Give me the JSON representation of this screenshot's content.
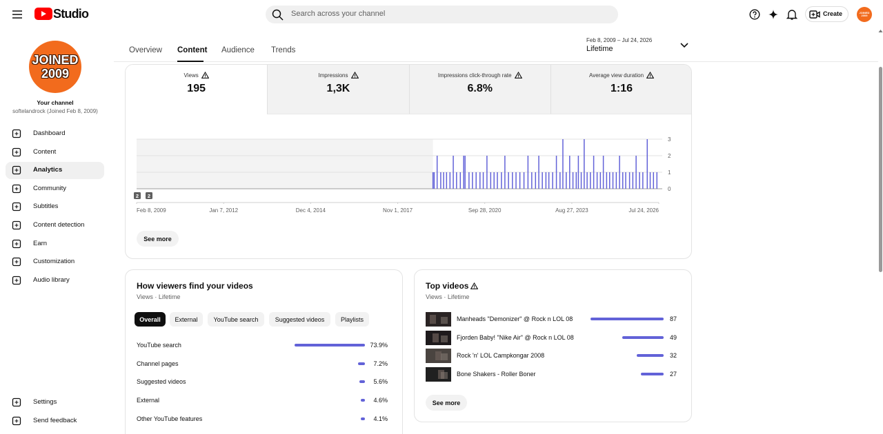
{
  "header": {
    "logo": "Studio",
    "search_placeholder": "Search across your channel",
    "create": "Create"
  },
  "sidebar": {
    "avatar": [
      "JOINED",
      "2009"
    ],
    "label": "Your channel",
    "channel": "softelandrock (Joined Feb 8, 2009)",
    "nav": [
      "Dashboard",
      "Content",
      "Analytics",
      "Community",
      "Subtitles",
      "Content detection",
      "Earn",
      "Customization",
      "Audio library"
    ],
    "active": 2,
    "footer": [
      "Settings",
      "Send feedback"
    ]
  },
  "tabs": {
    "items": [
      "Overview",
      "Content",
      "Audience",
      "Trends"
    ],
    "active": 1
  },
  "date_range": {
    "range": "Feb 8, 2009 – Jul 24, 2026",
    "period": "Lifetime"
  },
  "metrics": [
    {
      "label": "Views",
      "value": "195"
    },
    {
      "label": "Impressions",
      "value": "1,3K"
    },
    {
      "label": "Impressions click-through rate",
      "value": "6.8%"
    },
    {
      "label": "Average view duration",
      "value": "1:16"
    }
  ],
  "chart_data": {
    "type": "bar",
    "color": "#6262d8",
    "x": [
      "2019-01-05",
      "2019-01-20",
      "2019-02-25",
      "2019-04-10",
      "2019-05-15",
      "2019-06-20",
      "2019-08-01",
      "2019-09-10",
      "2019-10-20",
      "2019-12-05",
      "2020-01-15",
      "2020-02-01",
      "2020-03-20",
      "2020-05-01",
      "2020-06-15",
      "2020-08-01",
      "2020-09-10",
      "2020-10-25",
      "2020-12-10",
      "2021-01-20",
      "2021-03-01",
      "2021-04-20",
      "2021-06-01",
      "2021-07-15",
      "2021-09-01",
      "2021-10-15",
      "2021-12-01",
      "2022-01-20",
      "2022-03-10",
      "2022-04-25",
      "2022-06-10",
      "2022-07-20",
      "2022-09-01",
      "2022-10-15",
      "2022-11-20",
      "2023-01-05",
      "2023-02-20",
      "2023-04-05",
      "2023-05-10",
      "2023-06-20",
      "2023-08-01",
      "2023-09-10",
      "2023-10-20",
      "2023-11-15",
      "2023-12-20",
      "2024-01-25",
      "2024-03-01",
      "2024-04-10",
      "2024-05-20",
      "2024-07-01",
      "2024-08-10",
      "2024-09-15",
      "2024-10-25",
      "2024-12-01",
      "2025-01-10",
      "2025-02-20",
      "2025-04-01",
      "2025-05-10",
      "2025-06-15",
      "2025-08-01",
      "2025-09-10",
      "2025-10-20",
      "2025-12-01",
      "2026-01-10",
      "2026-03-05",
      "2026-04-10",
      "2026-05-20",
      "2026-07-01"
    ],
    "values": [
      1,
      1,
      2,
      1,
      1,
      1,
      1,
      2,
      1,
      1,
      2,
      2,
      1,
      1,
      1,
      1,
      1,
      2,
      1,
      1,
      1,
      1,
      2,
      1,
      1,
      1,
      1,
      1,
      2,
      1,
      1,
      2,
      1,
      1,
      1,
      1,
      2,
      1,
      3,
      1,
      2,
      1,
      1,
      2,
      1,
      3,
      1,
      1,
      2,
      1,
      1,
      2,
      1,
      1,
      1,
      1,
      2,
      1,
      1,
      1,
      1,
      2,
      1,
      1,
      3,
      1,
      1,
      1
    ],
    "xlim": [
      "2009-02-08",
      "2026-07-24"
    ],
    "xticks": [
      {
        "value": "2009-02-08",
        "label": "Feb 8, 2009"
      },
      {
        "value": "2012-01-07",
        "label": "Jan 7, 2012"
      },
      {
        "value": "2014-12-04",
        "label": "Dec 4, 2014"
      },
      {
        "value": "2017-11-01",
        "label": "Nov 1, 2017"
      },
      {
        "value": "2020-09-28",
        "label": "Sep 28, 2020"
      },
      {
        "value": "2023-08-27",
        "label": "Aug 27, 2023"
      },
      {
        "value": "2026-07-24",
        "label": "Jul 24, 2026"
      }
    ],
    "ylim": [
      0,
      3
    ],
    "yticks": [
      0,
      1,
      2,
      3
    ],
    "grid": true,
    "annotations": [
      "2",
      "2"
    ]
  },
  "overview_card": {
    "button": "See more"
  },
  "traffic": {
    "title": "How viewers find your videos",
    "subtitle": "Views · Lifetime",
    "chips": [
      "Overall",
      "External",
      "YouTube search",
      "Suggested videos",
      "Playlists"
    ],
    "active_chip": 0,
    "rows": [
      {
        "name": "YouTube search",
        "value": 73.9,
        "label": "73.9%"
      },
      {
        "name": "Channel pages",
        "value": 7.2,
        "label": "7.2%"
      },
      {
        "name": "Suggested videos",
        "value": 5.6,
        "label": "5.6%"
      },
      {
        "name": "External",
        "value": 4.6,
        "label": "4.6%"
      },
      {
        "name": "Other YouTube features",
        "value": 4.1,
        "label": "4.1%"
      }
    ]
  },
  "top_videos": {
    "title": "Top videos",
    "subtitle": "Views · Lifetime",
    "rows": [
      {
        "title": "Manheads \"Demonizer\" @ Rock n LOL 08",
        "value": 87
      },
      {
        "title": "Fjorden Baby! \"Nike Air\" @ Rock n LOL 08",
        "value": 49
      },
      {
        "title": "Rock 'n' LOL Campkongar 2008",
        "value": 32
      },
      {
        "title": "Bone Shakers - Roller Boner",
        "value": 27
      }
    ],
    "button": "See more"
  }
}
